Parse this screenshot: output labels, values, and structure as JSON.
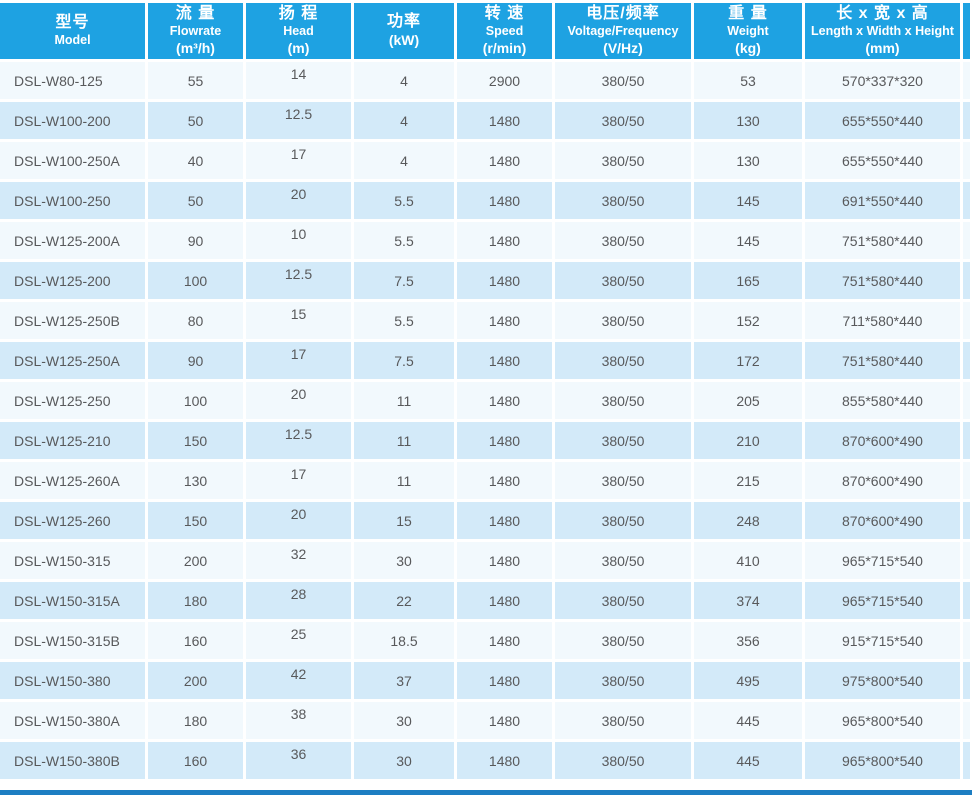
{
  "table": {
    "columns": [
      {
        "zh": "型号",
        "en": "Model",
        "unit": ""
      },
      {
        "zh": "流 量",
        "en": "Flowrate",
        "unit": "(m³/h)"
      },
      {
        "zh": "扬 程",
        "en": "Head",
        "unit": "(m)"
      },
      {
        "zh": "功率",
        "en": "",
        "unit": "(kW)"
      },
      {
        "zh": "转 速",
        "en": "Speed",
        "unit": "(r/min)"
      },
      {
        "zh": "电压/频率",
        "en": "Voltage/Frequency",
        "unit": "(V/Hz)"
      },
      {
        "zh": "重 量",
        "en": "Weight",
        "unit": "(kg)"
      },
      {
        "zh": "长 x 宽 x 高",
        "en": "Length x Width x Height",
        "unit": "(mm)"
      }
    ],
    "rows": [
      [
        "DSL-W80-125",
        "55",
        "14",
        "4",
        "2900",
        "380/50",
        "53",
        "570*337*320"
      ],
      [
        "DSL-W100-200",
        "50",
        "12.5",
        "4",
        "1480",
        "380/50",
        "130",
        "655*550*440"
      ],
      [
        "DSL-W100-250A",
        "40",
        "17",
        "4",
        "1480",
        "380/50",
        "130",
        "655*550*440"
      ],
      [
        "DSL-W100-250",
        "50",
        "20",
        "5.5",
        "1480",
        "380/50",
        "145",
        "691*550*440"
      ],
      [
        "DSL-W125-200A",
        "90",
        "10",
        "5.5",
        "1480",
        "380/50",
        "145",
        "751*580*440"
      ],
      [
        "DSL-W125-200",
        "100",
        "12.5",
        "7.5",
        "1480",
        "380/50",
        "165",
        "751*580*440"
      ],
      [
        "DSL-W125-250B",
        "80",
        "15",
        "5.5",
        "1480",
        "380/50",
        "152",
        "711*580*440"
      ],
      [
        "DSL-W125-250A",
        "90",
        "17",
        "7.5",
        "1480",
        "380/50",
        "172",
        "751*580*440"
      ],
      [
        "DSL-W125-250",
        "100",
        "20",
        "11",
        "1480",
        "380/50",
        "205",
        "855*580*440"
      ],
      [
        "DSL-W125-210",
        "150",
        "12.5",
        "11",
        "1480",
        "380/50",
        "210",
        "870*600*490"
      ],
      [
        "DSL-W125-260A",
        "130",
        "17",
        "11",
        "1480",
        "380/50",
        "215",
        "870*600*490"
      ],
      [
        "DSL-W125-260",
        "150",
        "20",
        "15",
        "1480",
        "380/50",
        "248",
        "870*600*490"
      ],
      [
        "DSL-W150-315",
        "200",
        "32",
        "30",
        "1480",
        "380/50",
        "410",
        "965*715*540"
      ],
      [
        "DSL-W150-315A",
        "180",
        "28",
        "22",
        "1480",
        "380/50",
        "374",
        "965*715*540"
      ],
      [
        "DSL-W150-315B",
        "160",
        "25",
        "18.5",
        "1480",
        "380/50",
        "356",
        "915*715*540"
      ],
      [
        "DSL-W150-380",
        "200",
        "42",
        "37",
        "1480",
        "380/50",
        "495",
        "975*800*540"
      ],
      [
        "DSL-W150-380A",
        "180",
        "38",
        "30",
        "1480",
        "380/50",
        "445",
        "965*800*540"
      ],
      [
        "DSL-W150-380B",
        "160",
        "36",
        "30",
        "1480",
        "380/50",
        "445",
        "965*800*540"
      ]
    ]
  },
  "colors": {
    "header_bg": "#1ea2e2",
    "row_light": "#f2f9fd",
    "row_shaded": "#d3eaf9",
    "bottom_bar": "#1d7ec2",
    "body_text": "#58595b",
    "header_text": "#ffffff"
  }
}
